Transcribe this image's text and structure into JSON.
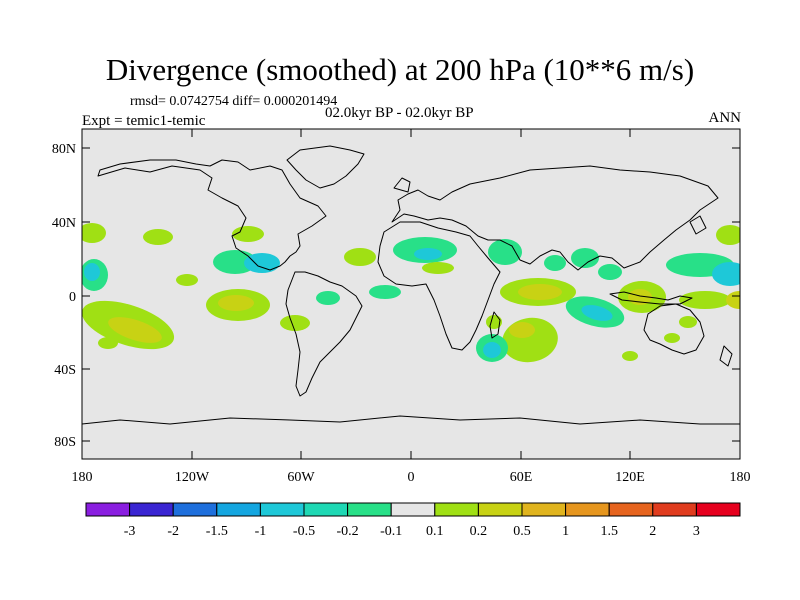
{
  "title": "Divergence (smoothed) at 200 hPa (10**6 m/s)",
  "stats_line": "rmsd= 0.0742754 diff= 0.000201494",
  "experiment_line": "Expt = temic1-temic",
  "period_line": "02.0kyr BP - 02.0kyr BP",
  "season": "ANN",
  "lat_ticks": [
    "80N",
    "40N",
    "0",
    "40S",
    "80S"
  ],
  "lon_ticks": [
    "180",
    "120W",
    "60W",
    "0",
    "60E",
    "120E",
    "180"
  ],
  "colorbar": {
    "labels": [
      "-3",
      "-2",
      "-1.5",
      "-1",
      "-0.5",
      "-0.2",
      "-0.1",
      "0.1",
      "0.2",
      "0.5",
      "1",
      "1.5",
      "2",
      "3"
    ],
    "colors": [
      "#8a1ee0",
      "#3a25d2",
      "#1e6fdc",
      "#14a6e0",
      "#1ec8d8",
      "#1ed8b4",
      "#28e088",
      "#e6e6e6",
      "#a0e014",
      "#c8d214",
      "#e0b41e",
      "#e6961e",
      "#e6641e",
      "#e03c1e",
      "#e6001e"
    ]
  },
  "colors": {
    "background": "#e6e6e6",
    "coast": "#000000"
  }
}
